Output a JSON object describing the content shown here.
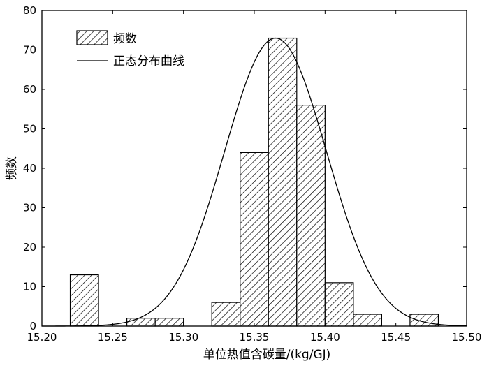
{
  "chart_data": {
    "type": "bar",
    "xlabel": "单位热值含碳量/(kg/GJ)",
    "ylabel": "频数",
    "xlim": [
      15.2,
      15.5
    ],
    "ylim": [
      0,
      80
    ],
    "x_ticks": [
      "15.20",
      "15.25",
      "15.30",
      "15.35",
      "15.40",
      "15.45",
      "15.50"
    ],
    "y_ticks": [
      "0",
      "10",
      "20",
      "30",
      "40",
      "50",
      "60",
      "70",
      "80"
    ],
    "bin_width": 0.02,
    "bins": [
      {
        "start": 15.22,
        "count": 13
      },
      {
        "start": 15.26,
        "count": 2
      },
      {
        "start": 15.28,
        "count": 2
      },
      {
        "start": 15.32,
        "count": 6
      },
      {
        "start": 15.34,
        "count": 44
      },
      {
        "start": 15.36,
        "count": 73
      },
      {
        "start": 15.38,
        "count": 56
      },
      {
        "start": 15.4,
        "count": 11
      },
      {
        "start": 15.42,
        "count": 3
      },
      {
        "start": 15.46,
        "count": 3
      }
    ],
    "normal_curve": {
      "mean": 15.365,
      "std": 0.036,
      "peak": 73
    },
    "legend": {
      "position": "top-left",
      "items": [
        {
          "label": "频数",
          "style": "hatched-bar"
        },
        {
          "label": "正态分布曲线",
          "style": "line"
        }
      ]
    },
    "grid": false
  }
}
